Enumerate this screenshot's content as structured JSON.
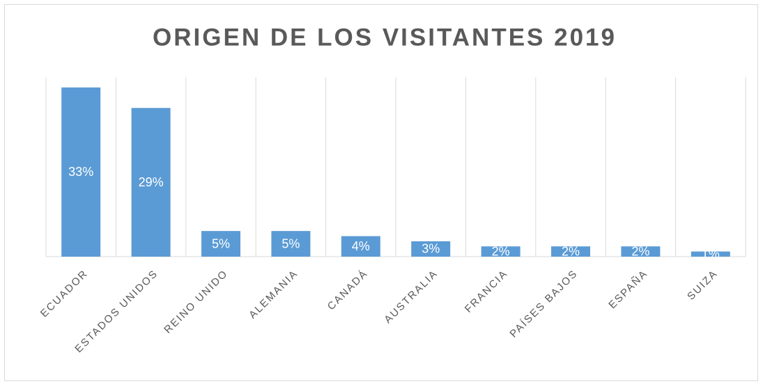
{
  "chart_data": {
    "type": "bar",
    "title": "ORIGEN DE LOS VISITANTES 2019",
    "categories": [
      "ECUADOR",
      "ESTADOS UNIDOS",
      "REINO UNIDO",
      "ALEMANIA",
      "CANADÁ",
      "AUSTRALIA",
      "FRANCIA",
      "PAÍSES BAJOS",
      "ESPAÑA",
      "SUIZA"
    ],
    "values": [
      33,
      29,
      5,
      5,
      4,
      3,
      2,
      2,
      2,
      1
    ],
    "value_labels": [
      "33%",
      "29%",
      "5%",
      "5%",
      "4%",
      "3%",
      "2%",
      "2%",
      "2%",
      "1%"
    ],
    "color": "#5b9bd5",
    "ylim": [
      0,
      35
    ]
  }
}
